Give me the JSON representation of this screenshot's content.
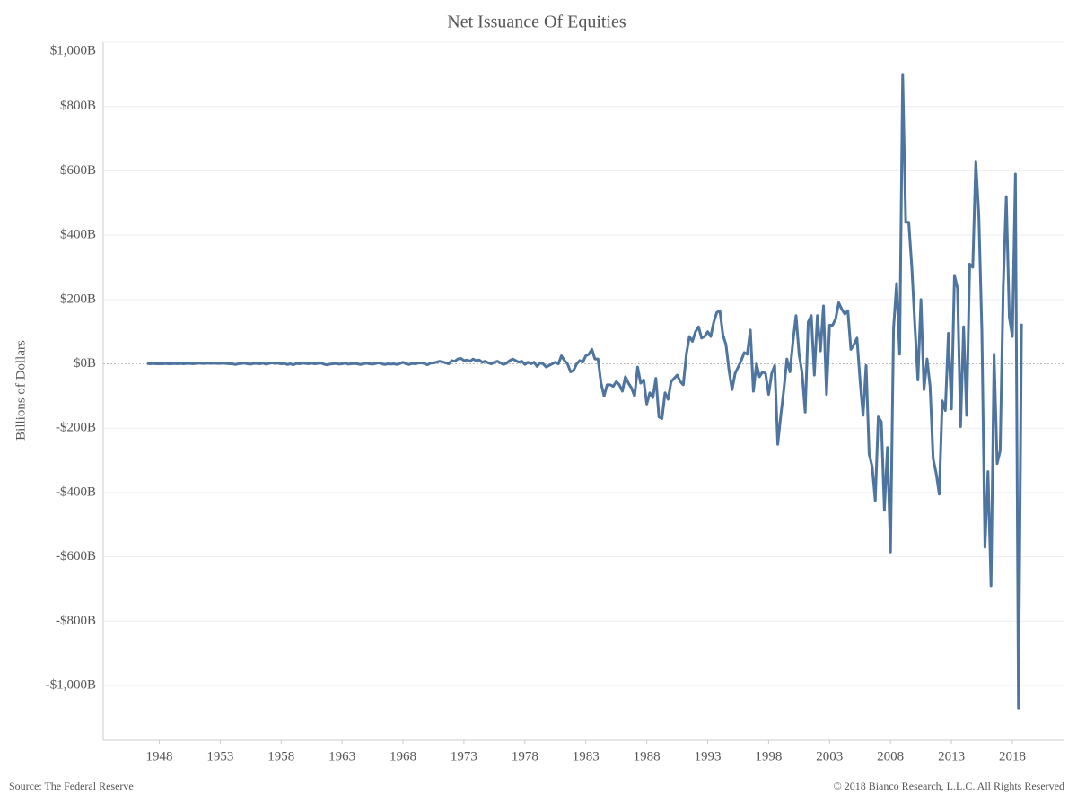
{
  "chart_data": {
    "type": "line",
    "title": "Net Issuance Of Equities",
    "y_label": "Billions of Dollars",
    "source": "Source: The Federal Reserve",
    "copyright": "© 2018 Bianco Research, L.L.C. All Rights Reserved",
    "xlim": [
      1943.4,
      2022.2
    ],
    "ylim": [
      -1170,
      1000
    ],
    "xticks": [
      1948,
      1953,
      1958,
      1963,
      1968,
      1973,
      1978,
      1983,
      1988,
      1993,
      1998,
      2003,
      2008,
      2013,
      2018
    ],
    "yticks": [
      {
        "value": 1000,
        "label": "$1,000B"
      },
      {
        "value": 800,
        "label": "$800B"
      },
      {
        "value": 600,
        "label": "$600B"
      },
      {
        "value": 400,
        "label": "$400B"
      },
      {
        "value": 200,
        "label": "$200B"
      },
      {
        "value": 0,
        "label": "$0B"
      },
      {
        "value": -200,
        "label": "-$200B"
      },
      {
        "value": -400,
        "label": "-$400B"
      },
      {
        "value": -600,
        "label": "-$600B"
      },
      {
        "value": -800,
        "label": "-$800B"
      },
      {
        "value": -1000,
        "label": "-$1,000B"
      }
    ],
    "grid": true,
    "x": [
      1947,
      1947.25,
      1947.5,
      1947.75,
      1948,
      1948.25,
      1948.5,
      1948.75,
      1949,
      1949.25,
      1949.5,
      1949.75,
      1950,
      1950.25,
      1950.5,
      1950.75,
      1951,
      1951.25,
      1951.5,
      1951.75,
      1952,
      1952.25,
      1952.5,
      1952.75,
      1953,
      1953.25,
      1953.5,
      1953.75,
      1954,
      1954.25,
      1954.5,
      1954.75,
      1955,
      1955.25,
      1955.5,
      1955.75,
      1956,
      1956.25,
      1956.5,
      1956.75,
      1957,
      1957.25,
      1957.5,
      1957.75,
      1958,
      1958.25,
      1958.5,
      1958.75,
      1959,
      1959.25,
      1959.5,
      1959.75,
      1960,
      1960.25,
      1960.5,
      1960.75,
      1961,
      1961.25,
      1961.5,
      1961.75,
      1962,
      1962.25,
      1962.5,
      1962.75,
      1963,
      1963.25,
      1963.5,
      1963.75,
      1964,
      1964.25,
      1964.5,
      1964.75,
      1965,
      1965.25,
      1965.5,
      1965.75,
      1966,
      1966.25,
      1966.5,
      1966.75,
      1967,
      1967.25,
      1967.5,
      1967.75,
      1968,
      1968.25,
      1968.5,
      1968.75,
      1969,
      1969.25,
      1969.5,
      1969.75,
      1970,
      1970.25,
      1970.5,
      1970.75,
      1971,
      1971.25,
      1971.5,
      1971.75,
      1972,
      1972.25,
      1972.5,
      1972.75,
      1973,
      1973.25,
      1973.5,
      1973.75,
      1974,
      1974.25,
      1974.5,
      1974.75,
      1975,
      1975.25,
      1975.5,
      1975.75,
      1976,
      1976.25,
      1976.5,
      1976.75,
      1977,
      1977.25,
      1977.5,
      1977.75,
      1978,
      1978.25,
      1978.5,
      1978.75,
      1979,
      1979.25,
      1979.5,
      1979.75,
      1980,
      1980.25,
      1980.5,
      1980.75,
      1981,
      1981.25,
      1981.5,
      1981.75,
      1982,
      1982.25,
      1982.5,
      1982.75,
      1983,
      1983.25,
      1983.5,
      1983.75,
      1984,
      1984.25,
      1984.5,
      1984.75,
      1985,
      1985.25,
      1985.5,
      1985.75,
      1986,
      1986.25,
      1986.5,
      1986.75,
      1987,
      1987.25,
      1987.5,
      1987.75,
      1988,
      1988.25,
      1988.5,
      1988.75,
      1989,
      1989.25,
      1989.5,
      1989.75,
      1990,
      1990.25,
      1990.5,
      1990.75,
      1991,
      1991.25,
      1991.5,
      1991.75,
      1992,
      1992.25,
      1992.5,
      1992.75,
      1993,
      1993.25,
      1993.5,
      1993.75,
      1994,
      1994.25,
      1994.5,
      1994.75,
      1995,
      1995.25,
      1995.5,
      1995.75,
      1996,
      1996.25,
      1996.5,
      1996.75,
      1997,
      1997.25,
      1997.5,
      1997.75,
      1998,
      1998.25,
      1998.5,
      1998.75,
      1999,
      1999.25,
      1999.5,
      1999.75,
      2000,
      2000.25,
      2000.5,
      2000.75,
      2001,
      2001.25,
      2001.5,
      2001.75,
      2002,
      2002.25,
      2002.5,
      2002.75,
      2003,
      2003.25,
      2003.5,
      2003.75,
      2004,
      2004.25,
      2004.5,
      2004.75,
      2005,
      2005.25,
      2005.5,
      2005.75,
      2006,
      2006.25,
      2006.5,
      2006.75,
      2007,
      2007.25,
      2007.5,
      2007.75,
      2008,
      2008.25,
      2008.5,
      2008.75,
      2009,
      2009.25,
      2009.5,
      2009.75,
      2010,
      2010.25,
      2010.5,
      2010.75,
      2011,
      2011.25,
      2011.5,
      2011.75,
      2012,
      2012.25,
      2012.5,
      2012.75,
      2013,
      2013.25,
      2013.5,
      2013.75,
      2014,
      2014.25,
      2014.5,
      2014.75,
      2015,
      2015.25,
      2015.5,
      2015.75,
      2016,
      2016.25,
      2016.5,
      2016.75,
      2017,
      2017.25,
      2017.5,
      2017.75,
      2018,
      2018.25,
      2018.5,
      2018.75
    ],
    "series": [
      {
        "name": "Net Issuance Of Equities",
        "color": "#4e74a0",
        "values": [
          1,
          0,
          1,
          0,
          0,
          0,
          1,
          0,
          0,
          1,
          0,
          1,
          0,
          1,
          1,
          0,
          1,
          2,
          1,
          1,
          2,
          1,
          2,
          1,
          1,
          2,
          1,
          0,
          0,
          -2,
          0,
          1,
          2,
          0,
          -1,
          1,
          1,
          0,
          2,
          -1,
          1,
          3,
          1,
          2,
          0,
          1,
          -2,
          0,
          -3,
          1,
          0,
          2,
          1,
          0,
          2,
          0,
          1,
          3,
          -1,
          -3,
          -1,
          0,
          1,
          -1,
          0,
          2,
          -1,
          0,
          1,
          0,
          -2,
          0,
          2,
          0,
          -1,
          1,
          3,
          0,
          -2,
          0,
          -1,
          0,
          -2,
          1,
          5,
          0,
          -2,
          1,
          0,
          2,
          3,
          1,
          -3,
          2,
          3,
          5,
          8,
          6,
          3,
          0,
          10,
          8,
          15,
          17,
          10,
          12,
          8,
          15,
          10,
          12,
          5,
          8,
          3,
          0,
          5,
          8,
          3,
          -2,
          2,
          10,
          15,
          10,
          5,
          8,
          -2,
          5,
          0,
          5,
          -8,
          3,
          0,
          -10,
          -5,
          0,
          5,
          0,
          25,
          10,
          0,
          -25,
          -20,
          0,
          10,
          5,
          25,
          30,
          45,
          15,
          15,
          -60,
          -100,
          -65,
          -65,
          -70,
          -55,
          -65,
          -85,
          -40,
          -60,
          -75,
          -100,
          -10,
          -60,
          -50,
          -125,
          -90,
          -105,
          -45,
          -165,
          -170,
          -90,
          -110,
          -55,
          -45,
          -35,
          -55,
          -65,
          30,
          85,
          70,
          100,
          115,
          80,
          85,
          100,
          85,
          130,
          160,
          165,
          90,
          60,
          -20,
          -80,
          -30,
          -10,
          10,
          35,
          30,
          105,
          -85,
          0,
          -40,
          -25,
          -30,
          -95,
          -30,
          -5,
          -250,
          -160,
          -80,
          15,
          -25,
          70,
          150,
          30,
          -30,
          -150,
          130,
          150,
          -35,
          150,
          40,
          180,
          -95,
          120,
          120,
          140,
          190,
          170,
          155,
          165,
          45,
          60,
          80,
          -50,
          -160,
          -5,
          -280,
          -320,
          -425,
          -165,
          -180,
          -455,
          -260,
          -585,
          110,
          250,
          30,
          900,
          440,
          440,
          300,
          120,
          -50,
          200,
          -80,
          15,
          -70,
          -295,
          -340,
          -405,
          -115,
          -145,
          95,
          -140,
          275,
          235,
          -195,
          115,
          -160,
          310,
          300,
          630,
          460,
          100,
          -570,
          -335,
          -690,
          30,
          -310,
          -270,
          240,
          520,
          145,
          85,
          590,
          -1070,
          125
        ]
      }
    ]
  }
}
